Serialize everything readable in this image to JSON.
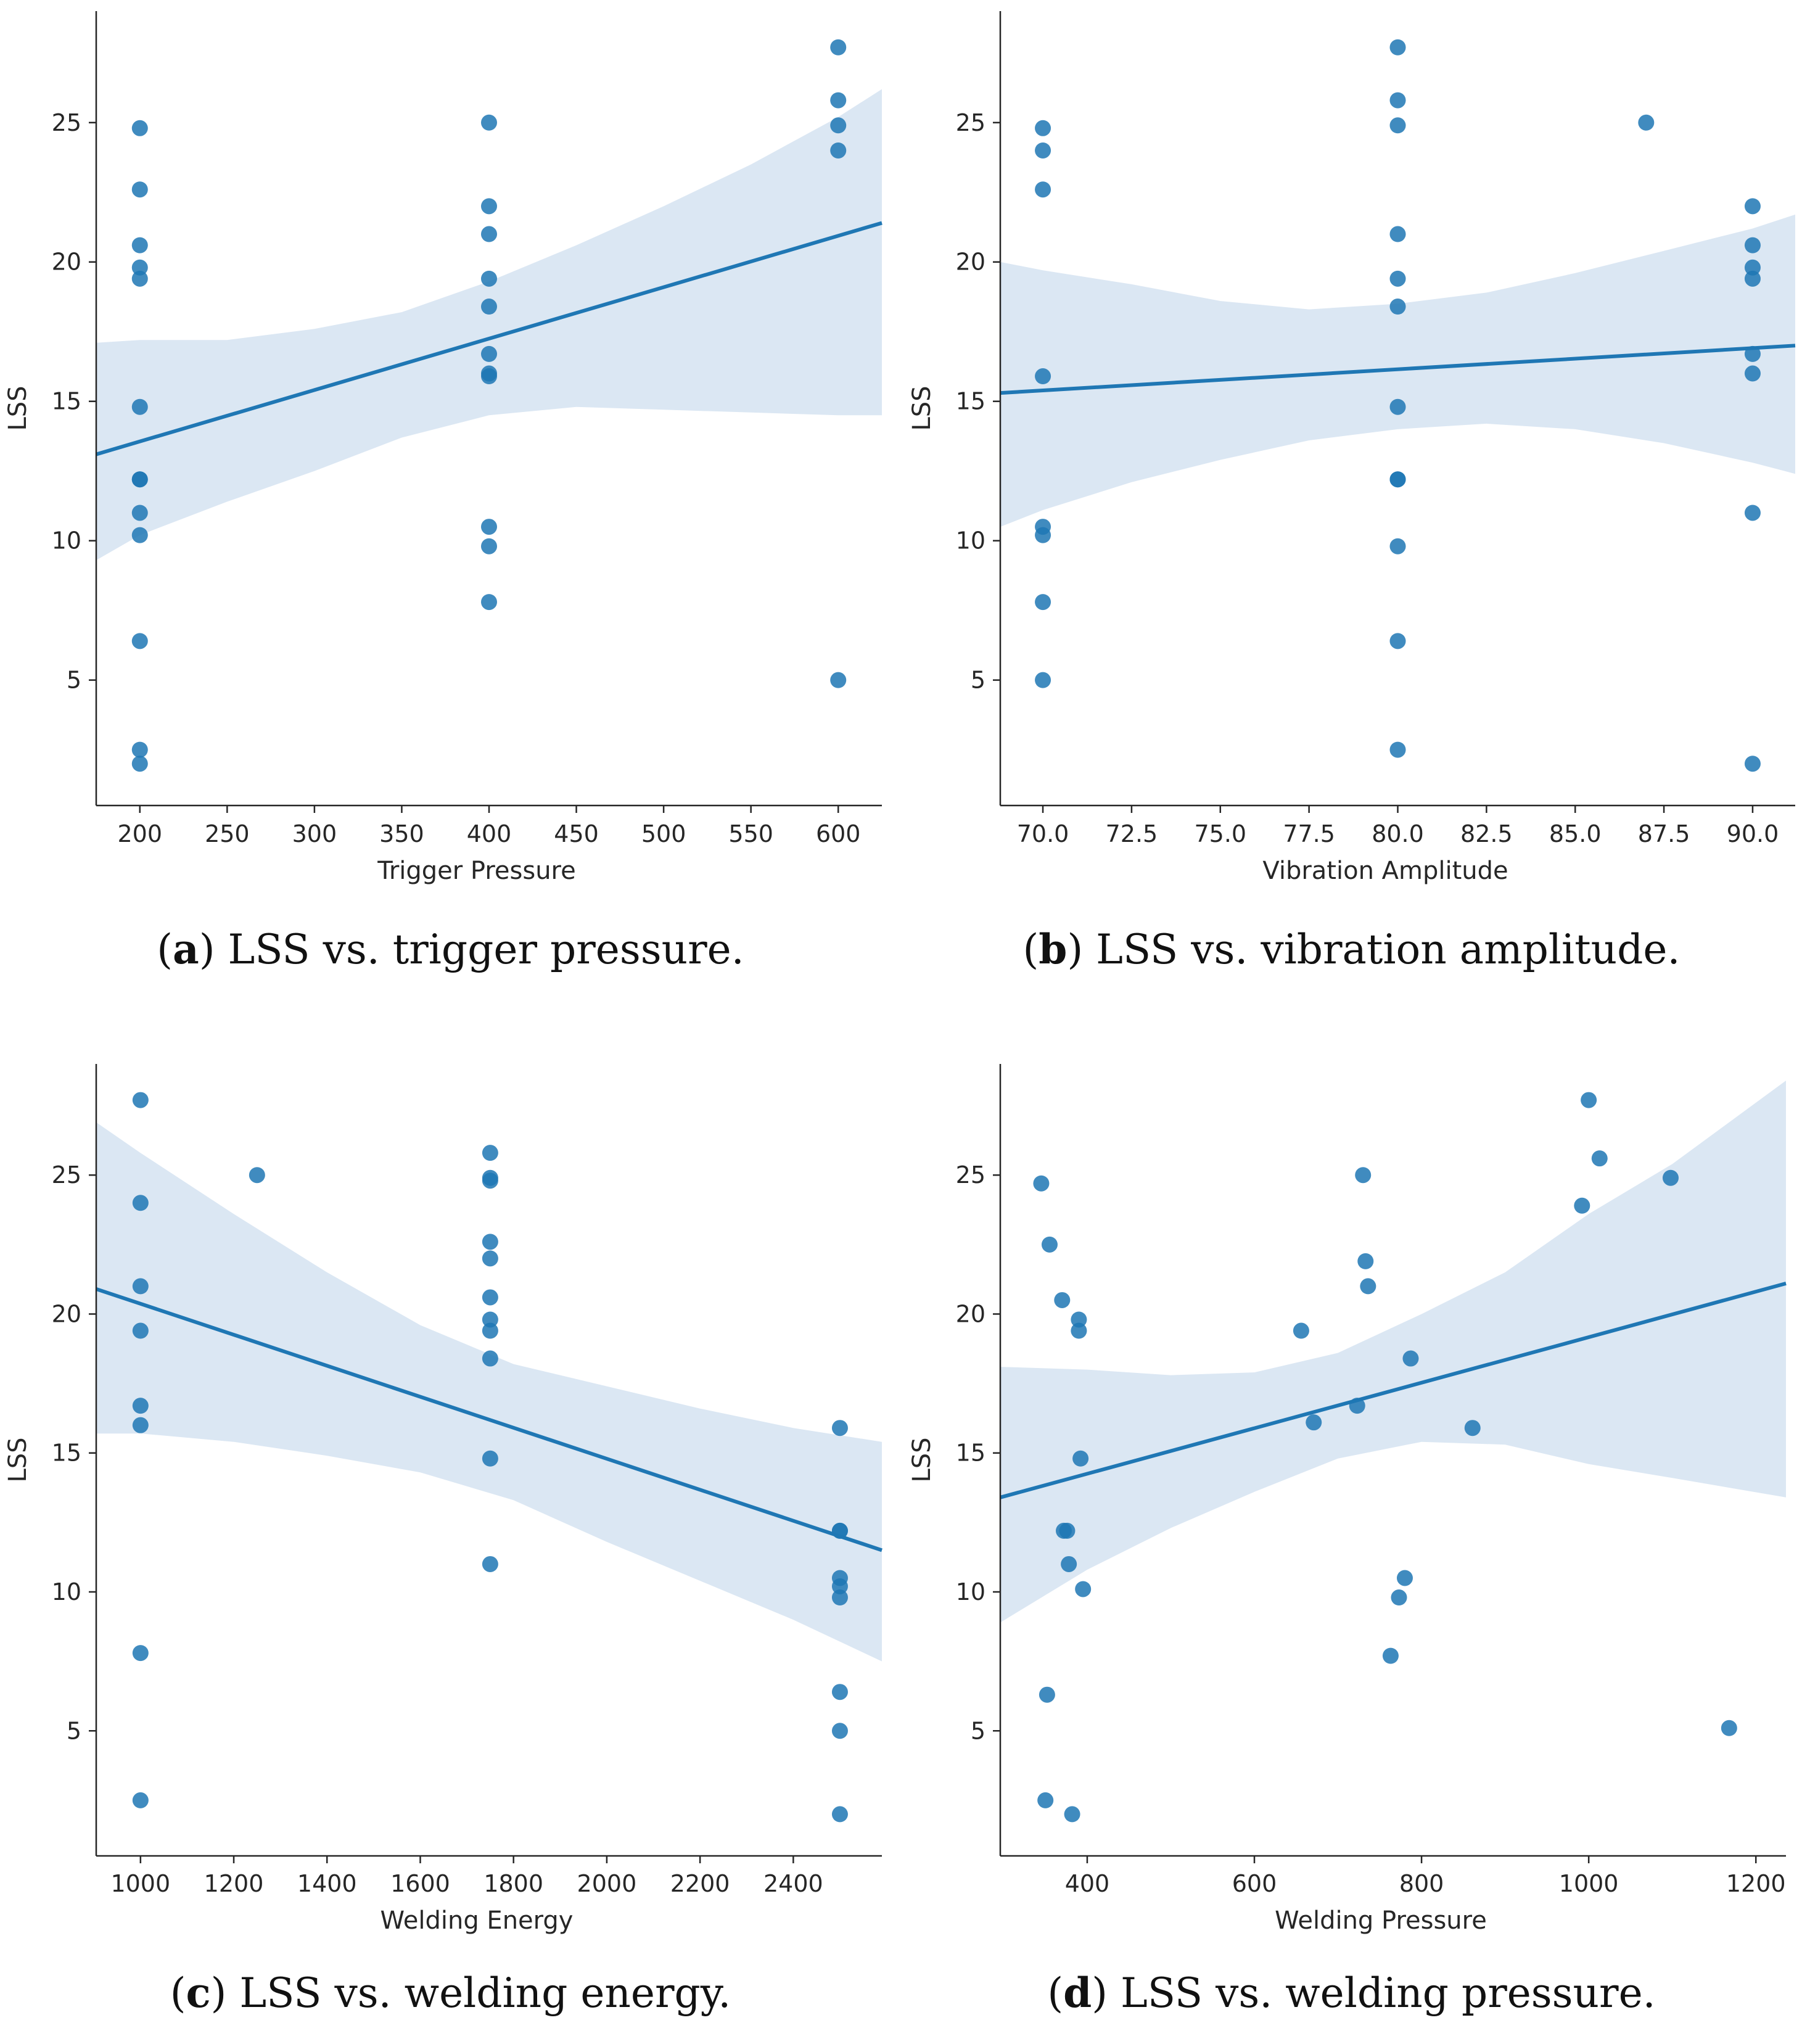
{
  "colors": {
    "point": "#1f77b4",
    "band": "#dbe7f3",
    "axis": "#262626"
  },
  "chart_data": [
    {
      "type": "scatter",
      "id": "a",
      "caption_letter": "a",
      "caption_text": " LSS vs. trigger pressure.",
      "xlabel": "Trigger Pressure",
      "ylabel": "LSS",
      "xlim": [
        175,
        625
      ],
      "ylim": [
        0.5,
        29
      ],
      "x_ticks": [
        200,
        250,
        300,
        350,
        400,
        450,
        500,
        550,
        600
      ],
      "x_tick_labels": [
        "200",
        "250",
        "300",
        "350",
        "400",
        "450",
        "500",
        "550",
        "600"
      ],
      "y_ticks": [
        5,
        10,
        15,
        20,
        25
      ],
      "y_tick_labels": [
        "5",
        "10",
        "15",
        "20",
        "25"
      ],
      "points": [
        [
          200,
          24.8
        ],
        [
          200,
          22.6
        ],
        [
          200,
          20.6
        ],
        [
          200,
          19.8
        ],
        [
          200,
          19.4
        ],
        [
          200,
          14.8
        ],
        [
          200,
          12.2
        ],
        [
          200,
          12.2
        ],
        [
          200,
          11.0
        ],
        [
          200,
          10.2
        ],
        [
          200,
          6.4
        ],
        [
          200,
          2.5
        ],
        [
          200,
          2.0
        ],
        [
          400,
          25.0
        ],
        [
          400,
          22.0
        ],
        [
          400,
          21.0
        ],
        [
          400,
          19.4
        ],
        [
          400,
          18.4
        ],
        [
          400,
          16.7
        ],
        [
          400,
          16.0
        ],
        [
          400,
          15.9
        ],
        [
          400,
          10.5
        ],
        [
          400,
          9.8
        ],
        [
          400,
          7.8
        ],
        [
          600,
          27.7
        ],
        [
          600,
          25.8
        ],
        [
          600,
          24.9
        ],
        [
          600,
          24.0
        ],
        [
          600,
          5.0
        ]
      ],
      "regression": {
        "x": [
          175,
          625
        ],
        "y": [
          13.1,
          21.4
        ]
      },
      "ci_band": {
        "x": [
          175,
          200,
          250,
          300,
          350,
          400,
          450,
          500,
          550,
          600,
          625
        ],
        "upper": [
          17.1,
          17.2,
          17.2,
          17.6,
          18.2,
          19.3,
          20.6,
          22.0,
          23.5,
          25.2,
          26.2
        ],
        "lower": [
          9.3,
          10.2,
          11.4,
          12.5,
          13.7,
          14.5,
          14.8,
          14.7,
          14.6,
          14.5,
          14.5
        ]
      }
    },
    {
      "type": "scatter",
      "id": "b",
      "caption_letter": "b",
      "caption_text": " LSS vs. vibration amplitude.",
      "xlabel": "Vibration Amplitude",
      "ylabel": "LSS",
      "xlim": [
        68.8,
        91.2
      ],
      "ylim": [
        0.5,
        29
      ],
      "x_ticks": [
        70,
        72.5,
        75,
        77.5,
        80,
        82.5,
        85,
        87.5,
        90
      ],
      "x_tick_labels": [
        "70.0",
        "72.5",
        "75.0",
        "77.5",
        "80.0",
        "82.5",
        "85.0",
        "87.5",
        "90.0"
      ],
      "y_ticks": [
        5,
        10,
        15,
        20,
        25
      ],
      "y_tick_labels": [
        "5",
        "10",
        "15",
        "20",
        "25"
      ],
      "points": [
        [
          70,
          24.8
        ],
        [
          70,
          24.0
        ],
        [
          70,
          22.6
        ],
        [
          70,
          15.9
        ],
        [
          70,
          10.5
        ],
        [
          70,
          10.2
        ],
        [
          70,
          7.8
        ],
        [
          70,
          5.0
        ],
        [
          80,
          27.7
        ],
        [
          80,
          25.8
        ],
        [
          80,
          24.9
        ],
        [
          80,
          21.0
        ],
        [
          80,
          19.4
        ],
        [
          80,
          18.4
        ],
        [
          80,
          14.8
        ],
        [
          80,
          12.2
        ],
        [
          80,
          12.2
        ],
        [
          80,
          9.8
        ],
        [
          80,
          6.4
        ],
        [
          80,
          2.5
        ],
        [
          87,
          25.0
        ],
        [
          90,
          22.0
        ],
        [
          90,
          20.6
        ],
        [
          90,
          19.8
        ],
        [
          90,
          19.4
        ],
        [
          90,
          16.7
        ],
        [
          90,
          16.0
        ],
        [
          90,
          11.0
        ],
        [
          90,
          2.0
        ]
      ],
      "regression": {
        "x": [
          68.8,
          91.2
        ],
        "y": [
          15.3,
          17.0
        ]
      },
      "ci_band": {
        "x": [
          68.8,
          70,
          72.5,
          75,
          77.5,
          80,
          82.5,
          85,
          87.5,
          90,
          91.2
        ],
        "upper": [
          20.0,
          19.7,
          19.2,
          18.6,
          18.3,
          18.5,
          18.9,
          19.6,
          20.4,
          21.2,
          21.7
        ],
        "lower": [
          10.5,
          11.1,
          12.1,
          12.9,
          13.6,
          14.0,
          14.2,
          14.0,
          13.5,
          12.8,
          12.4
        ]
      }
    },
    {
      "type": "scatter",
      "id": "c",
      "caption_letter": "c",
      "caption_text": " LSS vs. welding energy.",
      "xlabel": "Welding Energy",
      "ylabel": "LSS",
      "xlim": [
        905,
        2590
      ],
      "ylim": [
        0.5,
        29
      ],
      "x_ticks": [
        1000,
        1200,
        1400,
        1600,
        1800,
        2000,
        2200,
        2400
      ],
      "x_tick_labels": [
        "1000",
        "1200",
        "1400",
        "1600",
        "1800",
        "2000",
        "2200",
        "2400"
      ],
      "y_ticks": [
        5,
        10,
        15,
        20,
        25
      ],
      "y_tick_labels": [
        "5",
        "10",
        "15",
        "20",
        "25"
      ],
      "points": [
        [
          1000,
          27.7
        ],
        [
          1000,
          24.0
        ],
        [
          1000,
          21.0
        ],
        [
          1000,
          19.4
        ],
        [
          1000,
          16.7
        ],
        [
          1000,
          16.0
        ],
        [
          1000,
          7.8
        ],
        [
          1000,
          2.5
        ],
        [
          1250,
          25.0
        ],
        [
          1750,
          25.8
        ],
        [
          1750,
          24.9
        ],
        [
          1750,
          24.8
        ],
        [
          1750,
          22.6
        ],
        [
          1750,
          22.0
        ],
        [
          1750,
          20.6
        ],
        [
          1750,
          19.8
        ],
        [
          1750,
          19.4
        ],
        [
          1750,
          18.4
        ],
        [
          1750,
          14.8
        ],
        [
          1750,
          11.0
        ],
        [
          2500,
          15.9
        ],
        [
          2500,
          12.2
        ],
        [
          2500,
          12.2
        ],
        [
          2500,
          10.5
        ],
        [
          2500,
          10.2
        ],
        [
          2500,
          9.8
        ],
        [
          2500,
          6.4
        ],
        [
          2500,
          5.0
        ],
        [
          2500,
          2.0
        ]
      ],
      "regression": {
        "x": [
          905,
          2590
        ],
        "y": [
          20.9,
          11.5
        ]
      },
      "ci_band": {
        "x": [
          905,
          1000,
          1200,
          1400,
          1600,
          1800,
          2000,
          2200,
          2400,
          2590
        ],
        "upper": [
          26.9,
          25.8,
          23.6,
          21.5,
          19.6,
          18.2,
          17.4,
          16.6,
          15.9,
          15.4
        ],
        "lower": [
          15.7,
          15.7,
          15.4,
          14.9,
          14.3,
          13.3,
          11.8,
          10.4,
          9.0,
          7.5
        ]
      }
    },
    {
      "type": "scatter",
      "id": "d",
      "caption_letter": "d",
      "caption_text": " LSS vs. welding pressure.",
      "xlabel": "Welding Pressure",
      "ylabel": "LSS",
      "xlim": [
        296,
        1236
      ],
      "ylim": [
        0.5,
        29
      ],
      "x_ticks": [
        400,
        600,
        800,
        1000,
        1200
      ],
      "x_tick_labels": [
        "400",
        "600",
        "800",
        "1000",
        "1200"
      ],
      "y_ticks": [
        5,
        10,
        15,
        20,
        25
      ],
      "y_tick_labels": [
        "5",
        "10",
        "15",
        "20",
        "25"
      ],
      "points": [
        [
          345,
          24.7
        ],
        [
          355,
          22.5
        ],
        [
          370,
          20.5
        ],
        [
          390,
          19.8
        ],
        [
          390,
          19.4
        ],
        [
          392,
          14.8
        ],
        [
          372,
          12.2
        ],
        [
          376,
          12.2
        ],
        [
          378,
          11.0
        ],
        [
          395,
          10.1
        ],
        [
          352,
          6.3
        ],
        [
          350,
          2.5
        ],
        [
          382,
          2.0
        ],
        [
          656,
          19.4
        ],
        [
          671,
          16.1
        ],
        [
          723,
          16.7
        ],
        [
          730,
          25.0
        ],
        [
          733,
          21.9
        ],
        [
          736,
          21.0
        ],
        [
          763,
          7.7
        ],
        [
          773,
          9.8
        ],
        [
          780,
          10.5
        ],
        [
          787,
          18.4
        ],
        [
          861,
          15.9
        ],
        [
          992,
          23.9
        ],
        [
          1000,
          27.7
        ],
        [
          1013,
          25.6
        ],
        [
          1098,
          24.9
        ],
        [
          1168,
          5.1
        ]
      ],
      "regression": {
        "x": [
          296,
          1236
        ],
        "y": [
          13.4,
          21.1
        ]
      },
      "ci_band": {
        "x": [
          296,
          400,
          500,
          600,
          700,
          800,
          900,
          1000,
          1100,
          1236
        ],
        "upper": [
          18.1,
          18.0,
          17.8,
          17.9,
          18.6,
          20.0,
          21.5,
          23.6,
          25.4,
          28.4
        ],
        "lower": [
          8.9,
          10.8,
          12.3,
          13.6,
          14.8,
          15.4,
          15.3,
          14.6,
          14.1,
          13.4
        ]
      }
    }
  ]
}
